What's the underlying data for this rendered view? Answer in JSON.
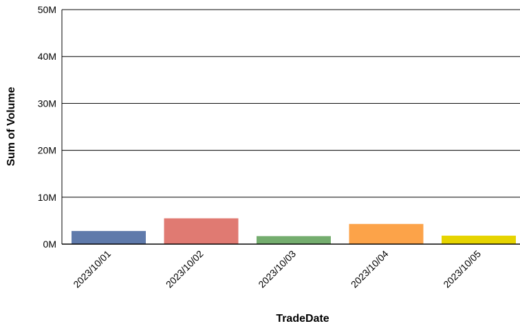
{
  "chart_data": {
    "type": "bar",
    "xlabel": "TradeDate",
    "ylabel": "Sum of Volume",
    "categories": [
      "2023/10/01",
      "2023/10/02",
      "2023/10/03",
      "2023/10/04",
      "2023/10/05"
    ],
    "values": [
      2800000,
      5500000,
      1700000,
      4300000,
      1800000
    ],
    "colors": [
      "#5f7aab",
      "#e07a72",
      "#74ad6e",
      "#fca349",
      "#e6d400"
    ],
    "ylim": [
      0,
      50000000
    ],
    "y_ticks": [
      0,
      10000000,
      20000000,
      30000000,
      40000000,
      50000000
    ],
    "y_tick_labels": [
      "0M",
      "10M",
      "20M",
      "30M",
      "40M",
      "50M"
    ],
    "grid": true,
    "legend": "none"
  }
}
